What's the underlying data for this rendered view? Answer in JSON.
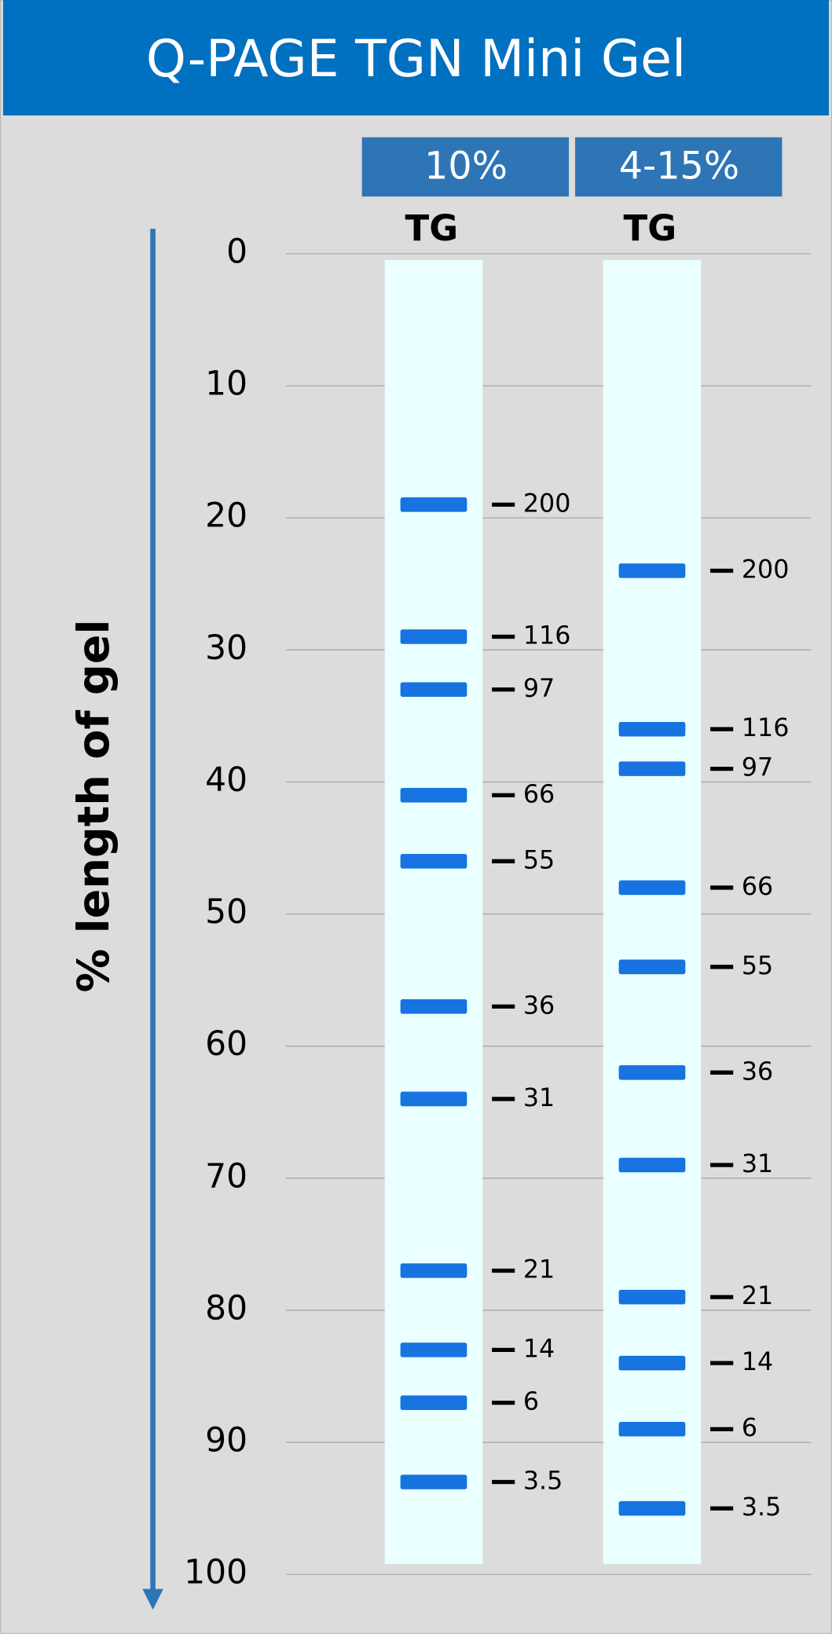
{
  "chart_data": {
    "type": "gel",
    "title": "Q-PAGE TGN Mini Gel",
    "y_label": "% length of gel",
    "ylim": [
      0,
      100
    ],
    "yticks": [
      0,
      10,
      20,
      30,
      40,
      50,
      60,
      70,
      80,
      90,
      100
    ],
    "grid": true,
    "band_color": "#1673e0",
    "lanes": [
      {
        "header": "10%",
        "name": "TG",
        "bands": [
          {
            "size": 200,
            "position": 19
          },
          {
            "size": 116,
            "position": 29
          },
          {
            "size": 97,
            "position": 33
          },
          {
            "size": 66,
            "position": 41
          },
          {
            "size": 55,
            "position": 46
          },
          {
            "size": 36,
            "position": 57
          },
          {
            "size": 31,
            "position": 64
          },
          {
            "size": 21,
            "position": 77
          },
          {
            "size": 14,
            "position": 83
          },
          {
            "size": 6,
            "position": 87
          },
          {
            "size": 3.5,
            "position": 93
          }
        ]
      },
      {
        "header": "4-15%",
        "name": "TG",
        "bands": [
          {
            "size": 200,
            "position": 24
          },
          {
            "size": 116,
            "position": 36
          },
          {
            "size": 97,
            "position": 39
          },
          {
            "size": 66,
            "position": 48
          },
          {
            "size": 55,
            "position": 54
          },
          {
            "size": 36,
            "position": 62
          },
          {
            "size": 31,
            "position": 69
          },
          {
            "size": 21,
            "position": 79
          },
          {
            "size": 14,
            "position": 84
          },
          {
            "size": 6,
            "position": 89
          },
          {
            "size": 3.5,
            "position": 95
          }
        ]
      }
    ]
  }
}
